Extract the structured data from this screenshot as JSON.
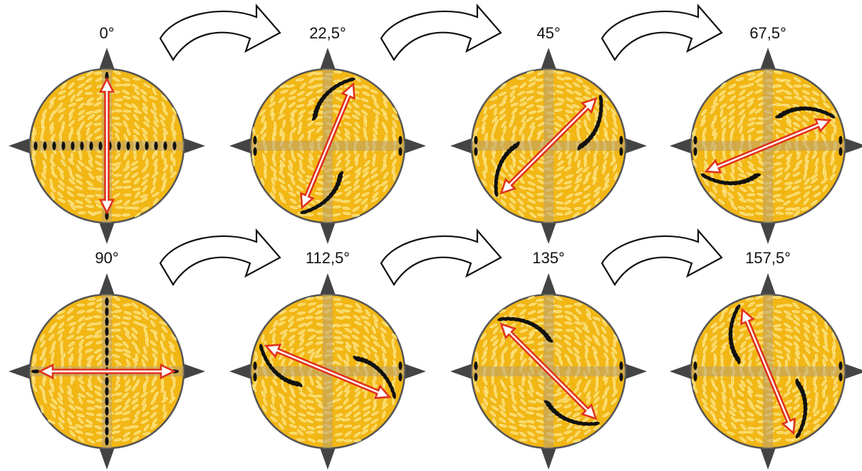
{
  "panels": [
    {
      "label": "0°",
      "angle_deg": 0
    },
    {
      "label": "22,5°",
      "angle_deg": 22.5
    },
    {
      "label": "45°",
      "angle_deg": 45
    },
    {
      "label": "67,5°",
      "angle_deg": 67.5
    },
    {
      "label": "90°",
      "angle_deg": 90
    },
    {
      "label": "112,5°",
      "angle_deg": 112.5
    },
    {
      "label": "135°",
      "angle_deg": 135
    },
    {
      "label": "157,5°",
      "angle_deg": 157.5
    }
  ],
  "colors": {
    "disk_fill": "#f2b714",
    "disk_stroke": "#555555",
    "molecule_light": "#ffd84a",
    "molecule_dark": "#111111",
    "arrow": "#e0321c",
    "compass_mark": "#444444",
    "cross_band": "#b8a070",
    "flow_arrow_fill": "#ffffff",
    "flow_arrow_stroke": "#111111"
  }
}
